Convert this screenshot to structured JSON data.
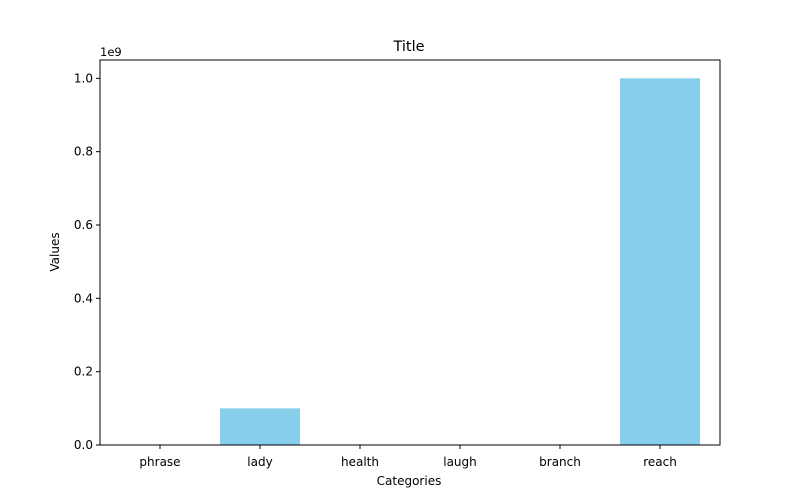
{
  "chart_data": {
    "type": "bar",
    "title": "Title",
    "xlabel": "Categories",
    "ylabel": "Values",
    "y_multiplier_label": "1e9",
    "categories": [
      "phrase",
      "lady",
      "health",
      "laugh",
      "branch",
      "reach"
    ],
    "values": [
      0,
      100000000,
      0,
      0,
      0,
      1000000000
    ],
    "ylim": [
      0,
      1050000000
    ],
    "yticks": [
      0,
      200000000,
      400000000,
      600000000,
      800000000,
      1000000000
    ],
    "ytick_labels": [
      "0.0",
      "0.2",
      "0.4",
      "0.6",
      "0.8",
      "1.0"
    ],
    "grid": false,
    "bar_color": "#87CEEB"
  }
}
